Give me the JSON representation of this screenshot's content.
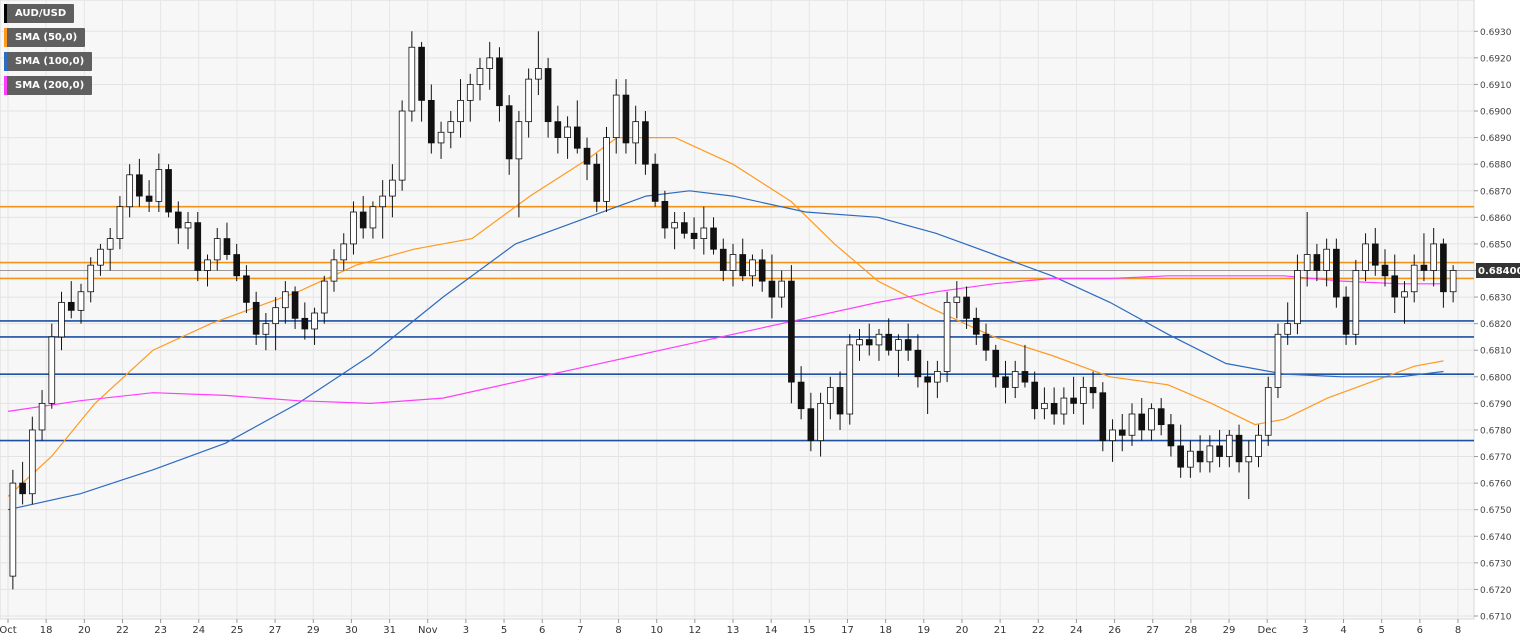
{
  "legend": [
    {
      "label": "AUD/USD",
      "color": "#000000"
    },
    {
      "label": "SMA (50,0)",
      "color": "#ff9a1f"
    },
    {
      "label": "SMA (100,0)",
      "color": "#2d6bc0"
    },
    {
      "label": "SMA (200,0)",
      "color": "#ff3dff"
    }
  ],
  "current_price_label": "0.68400",
  "chart_data": {
    "type": "candlestick",
    "symbol": "AUD/USD",
    "ylim": [
      0.671,
      0.6935
    ],
    "y_ticks": [
      "0.6710",
      "0.6720",
      "0.6730",
      "0.6740",
      "0.6750",
      "0.6760",
      "0.6770",
      "0.6780",
      "0.6790",
      "0.6800",
      "0.6810",
      "0.6820",
      "0.6830",
      "0.6840",
      "0.6850",
      "0.6860",
      "0.6870",
      "0.6880",
      "0.6890",
      "0.6900",
      "0.6910",
      "0.6920",
      "0.6930"
    ],
    "x_ticks": [
      "Oct",
      "18",
      "20",
      "22",
      "23",
      "24",
      "25",
      "27",
      "29",
      "30",
      "31",
      "Nov",
      "3",
      "5",
      "6",
      "7",
      "8",
      "10",
      "12",
      "13",
      "14",
      "15",
      "17",
      "18",
      "19",
      "20",
      "21",
      "22",
      "24",
      "26",
      "27",
      "28",
      "29",
      "Dec",
      "3",
      "4",
      "5",
      "6",
      "8"
    ],
    "current_price": 0.684,
    "horizontal_levels": {
      "resistance_orange": [
        0.6864,
        0.6843,
        0.6837
      ],
      "support_blue": [
        0.6821,
        0.6815,
        0.6801,
        0.6776
      ]
    },
    "candles": [
      [
        0.6725,
        0.6765,
        0.672,
        0.676
      ],
      [
        0.676,
        0.6768,
        0.6752,
        0.6756
      ],
      [
        0.6756,
        0.6785,
        0.6752,
        0.678
      ],
      [
        0.678,
        0.6795,
        0.6776,
        0.679
      ],
      [
        0.679,
        0.682,
        0.6788,
        0.6815
      ],
      [
        0.6815,
        0.6832,
        0.681,
        0.6828
      ],
      [
        0.6828,
        0.6836,
        0.6822,
        0.6825
      ],
      [
        0.6825,
        0.6835,
        0.682,
        0.6832
      ],
      [
        0.6832,
        0.6845,
        0.6828,
        0.6842
      ],
      [
        0.6842,
        0.685,
        0.6838,
        0.6848
      ],
      [
        0.6848,
        0.6856,
        0.684,
        0.6852
      ],
      [
        0.6852,
        0.6868,
        0.6848,
        0.6864
      ],
      [
        0.6864,
        0.688,
        0.686,
        0.6876
      ],
      [
        0.6876,
        0.6882,
        0.6864,
        0.6868
      ],
      [
        0.6868,
        0.6874,
        0.6862,
        0.6866
      ],
      [
        0.6866,
        0.6884,
        0.6862,
        0.6878
      ],
      [
        0.6878,
        0.688,
        0.686,
        0.6862
      ],
      [
        0.6862,
        0.6866,
        0.685,
        0.6856
      ],
      [
        0.6856,
        0.6862,
        0.6848,
        0.6858
      ],
      [
        0.6858,
        0.6862,
        0.6836,
        0.684
      ],
      [
        0.684,
        0.6846,
        0.6834,
        0.6844
      ],
      [
        0.6844,
        0.6856,
        0.684,
        0.6852
      ],
      [
        0.6852,
        0.6858,
        0.6844,
        0.6846
      ],
      [
        0.6846,
        0.685,
        0.6836,
        0.6838
      ],
      [
        0.6838,
        0.6842,
        0.6824,
        0.6828
      ],
      [
        0.6828,
        0.6832,
        0.6812,
        0.6816
      ],
      [
        0.6816,
        0.6824,
        0.681,
        0.682
      ],
      [
        0.682,
        0.683,
        0.681,
        0.6826
      ],
      [
        0.6826,
        0.6836,
        0.682,
        0.6832
      ],
      [
        0.6832,
        0.6834,
        0.6818,
        0.6822
      ],
      [
        0.6822,
        0.6828,
        0.6814,
        0.6818
      ],
      [
        0.6818,
        0.6826,
        0.6812,
        0.6824
      ],
      [
        0.6824,
        0.6838,
        0.682,
        0.6836
      ],
      [
        0.6836,
        0.6848,
        0.6832,
        0.6844
      ],
      [
        0.6844,
        0.6854,
        0.684,
        0.685
      ],
      [
        0.685,
        0.6866,
        0.6846,
        0.6862
      ],
      [
        0.6862,
        0.6868,
        0.6852,
        0.6856
      ],
      [
        0.6856,
        0.6866,
        0.6852,
        0.6864
      ],
      [
        0.6864,
        0.6874,
        0.6852,
        0.6868
      ],
      [
        0.6868,
        0.688,
        0.686,
        0.6874
      ],
      [
        0.6874,
        0.6904,
        0.687,
        0.69
      ],
      [
        0.69,
        0.693,
        0.6896,
        0.6924
      ],
      [
        0.6924,
        0.6926,
        0.6896,
        0.6904
      ],
      [
        0.6904,
        0.691,
        0.6884,
        0.6888
      ],
      [
        0.6888,
        0.6896,
        0.6882,
        0.6892
      ],
      [
        0.6892,
        0.69,
        0.6886,
        0.6896
      ],
      [
        0.6896,
        0.6912,
        0.689,
        0.6904
      ],
      [
        0.6904,
        0.6914,
        0.6896,
        0.691
      ],
      [
        0.691,
        0.692,
        0.6904,
        0.6916
      ],
      [
        0.6916,
        0.6926,
        0.6908,
        0.692
      ],
      [
        0.692,
        0.6924,
        0.6896,
        0.6902
      ],
      [
        0.6902,
        0.6906,
        0.6876,
        0.6882
      ],
      [
        0.6882,
        0.69,
        0.686,
        0.6896
      ],
      [
        0.6896,
        0.6916,
        0.689,
        0.6912
      ],
      [
        0.6912,
        0.693,
        0.6906,
        0.6916
      ],
      [
        0.6916,
        0.692,
        0.689,
        0.6896
      ],
      [
        0.6896,
        0.6902,
        0.6884,
        0.689
      ],
      [
        0.689,
        0.6898,
        0.6882,
        0.6894
      ],
      [
        0.6894,
        0.6904,
        0.6884,
        0.6886
      ],
      [
        0.6886,
        0.689,
        0.6874,
        0.688
      ],
      [
        0.688,
        0.6884,
        0.6862,
        0.6866
      ],
      [
        0.6866,
        0.6894,
        0.6862,
        0.689
      ],
      [
        0.689,
        0.6912,
        0.6884,
        0.6906
      ],
      [
        0.6906,
        0.6912,
        0.6884,
        0.6888
      ],
      [
        0.6888,
        0.6902,
        0.688,
        0.6896
      ],
      [
        0.6896,
        0.69,
        0.6876,
        0.688
      ],
      [
        0.688,
        0.6884,
        0.6864,
        0.6866
      ],
      [
        0.6866,
        0.687,
        0.6852,
        0.6856
      ],
      [
        0.6856,
        0.6862,
        0.6848,
        0.6858
      ],
      [
        0.6858,
        0.6862,
        0.6852,
        0.6854
      ],
      [
        0.6854,
        0.686,
        0.6848,
        0.6852
      ],
      [
        0.6852,
        0.6864,
        0.6846,
        0.6856
      ],
      [
        0.6856,
        0.686,
        0.6846,
        0.6848
      ],
      [
        0.6848,
        0.6852,
        0.6836,
        0.684
      ],
      [
        0.684,
        0.685,
        0.6834,
        0.6846
      ],
      [
        0.6846,
        0.6852,
        0.6836,
        0.6838
      ],
      [
        0.6838,
        0.6846,
        0.6834,
        0.6844
      ],
      [
        0.6844,
        0.6848,
        0.6832,
        0.6836
      ],
      [
        0.6836,
        0.6846,
        0.6822,
        0.683
      ],
      [
        0.683,
        0.684,
        0.6826,
        0.6836
      ],
      [
        0.6836,
        0.6842,
        0.679,
        0.6798
      ],
      [
        0.6798,
        0.6804,
        0.6784,
        0.6788
      ],
      [
        0.6788,
        0.6794,
        0.6772,
        0.6776
      ],
      [
        0.6776,
        0.6794,
        0.677,
        0.679
      ],
      [
        0.679,
        0.68,
        0.6784,
        0.6796
      ],
      [
        0.6796,
        0.6802,
        0.678,
        0.6786
      ],
      [
        0.6786,
        0.6816,
        0.6782,
        0.6812
      ],
      [
        0.6812,
        0.6818,
        0.6806,
        0.6814
      ],
      [
        0.6814,
        0.682,
        0.6808,
        0.6812
      ],
      [
        0.6812,
        0.6818,
        0.6806,
        0.6816
      ],
      [
        0.6816,
        0.6822,
        0.6808,
        0.681
      ],
      [
        0.681,
        0.6816,
        0.68,
        0.6814
      ],
      [
        0.6814,
        0.682,
        0.6806,
        0.681
      ],
      [
        0.681,
        0.6816,
        0.6796,
        0.68
      ],
      [
        0.68,
        0.6806,
        0.6786,
        0.6798
      ],
      [
        0.6798,
        0.6806,
        0.6792,
        0.6802
      ],
      [
        0.6802,
        0.6832,
        0.6798,
        0.6828
      ],
      [
        0.6828,
        0.6836,
        0.6822,
        0.683
      ],
      [
        0.683,
        0.6834,
        0.6818,
        0.6822
      ],
      [
        0.6822,
        0.6826,
        0.6812,
        0.6816
      ],
      [
        0.6816,
        0.682,
        0.6806,
        0.681
      ],
      [
        0.681,
        0.6812,
        0.6796,
        0.68
      ],
      [
        0.68,
        0.6806,
        0.679,
        0.6796
      ],
      [
        0.6796,
        0.6806,
        0.6792,
        0.6802
      ],
      [
        0.6802,
        0.6812,
        0.6796,
        0.6798
      ],
      [
        0.6798,
        0.6802,
        0.6784,
        0.6788
      ],
      [
        0.6788,
        0.6796,
        0.6784,
        0.679
      ],
      [
        0.679,
        0.6796,
        0.6782,
        0.6786
      ],
      [
        0.6786,
        0.6796,
        0.6782,
        0.6792
      ],
      [
        0.6792,
        0.68,
        0.6786,
        0.679
      ],
      [
        0.679,
        0.68,
        0.6782,
        0.6796
      ],
      [
        0.6796,
        0.6802,
        0.6788,
        0.6794
      ],
      [
        0.6794,
        0.6798,
        0.6772,
        0.6776
      ],
      [
        0.6776,
        0.6784,
        0.6768,
        0.678
      ],
      [
        0.678,
        0.6786,
        0.6772,
        0.6778
      ],
      [
        0.6778,
        0.679,
        0.6774,
        0.6786
      ],
      [
        0.6786,
        0.6792,
        0.6776,
        0.678
      ],
      [
        0.678,
        0.679,
        0.6776,
        0.6788
      ],
      [
        0.6788,
        0.6792,
        0.6778,
        0.6782
      ],
      [
        0.6782,
        0.6786,
        0.677,
        0.6774
      ],
      [
        0.6774,
        0.6782,
        0.6762,
        0.6766
      ],
      [
        0.6766,
        0.6776,
        0.6762,
        0.6772
      ],
      [
        0.6772,
        0.6778,
        0.6764,
        0.6768
      ],
      [
        0.6768,
        0.6778,
        0.6764,
        0.6774
      ],
      [
        0.6774,
        0.678,
        0.6766,
        0.677
      ],
      [
        0.677,
        0.678,
        0.6766,
        0.6778
      ],
      [
        0.6778,
        0.6782,
        0.6764,
        0.6768
      ],
      [
        0.6768,
        0.6776,
        0.6754,
        0.677
      ],
      [
        0.677,
        0.6782,
        0.6766,
        0.6778
      ],
      [
        0.6778,
        0.68,
        0.6774,
        0.6796
      ],
      [
        0.6796,
        0.682,
        0.6792,
        0.6816
      ],
      [
        0.6816,
        0.6828,
        0.6812,
        0.682
      ],
      [
        0.682,
        0.6846,
        0.6816,
        0.684
      ],
      [
        0.684,
        0.6862,
        0.6834,
        0.6846
      ],
      [
        0.6846,
        0.685,
        0.6836,
        0.684
      ],
      [
        0.684,
        0.6852,
        0.6834,
        0.6848
      ],
      [
        0.6848,
        0.6852,
        0.6826,
        0.683
      ],
      [
        0.683,
        0.6834,
        0.6812,
        0.6816
      ],
      [
        0.6816,
        0.6844,
        0.6812,
        0.684
      ],
      [
        0.684,
        0.6854,
        0.6836,
        0.685
      ],
      [
        0.685,
        0.6856,
        0.6838,
        0.6842
      ],
      [
        0.6842,
        0.6848,
        0.6834,
        0.6838
      ],
      [
        0.6838,
        0.6846,
        0.6824,
        0.683
      ],
      [
        0.683,
        0.6836,
        0.682,
        0.6832
      ],
      [
        0.6832,
        0.6846,
        0.6828,
        0.6842
      ],
      [
        0.6842,
        0.6854,
        0.6836,
        0.684
      ],
      [
        0.684,
        0.6856,
        0.6834,
        0.685
      ],
      [
        0.685,
        0.6852,
        0.6826,
        0.6832
      ],
      [
        0.6832,
        0.6842,
        0.6828,
        0.684
      ]
    ],
    "series": [
      {
        "name": "SMA (50,0)",
        "color": "#ff9a1f",
        "points": [
          [
            0,
            0.6755
          ],
          [
            0.03,
            0.677
          ],
          [
            0.06,
            0.679
          ],
          [
            0.1,
            0.681
          ],
          [
            0.14,
            0.682
          ],
          [
            0.2,
            0.6832
          ],
          [
            0.24,
            0.6842
          ],
          [
            0.28,
            0.6848
          ],
          [
            0.32,
            0.6852
          ],
          [
            0.36,
            0.6868
          ],
          [
            0.4,
            0.6882
          ],
          [
            0.42,
            0.689
          ],
          [
            0.46,
            0.689
          ],
          [
            0.5,
            0.688
          ],
          [
            0.54,
            0.6866
          ],
          [
            0.57,
            0.685
          ],
          [
            0.6,
            0.6836
          ],
          [
            0.64,
            0.6825
          ],
          [
            0.68,
            0.6815
          ],
          [
            0.72,
            0.6808
          ],
          [
            0.76,
            0.68
          ],
          [
            0.8,
            0.6797
          ],
          [
            0.83,
            0.679
          ],
          [
            0.86,
            0.6782
          ],
          [
            0.88,
            0.6784
          ],
          [
            0.91,
            0.6792
          ],
          [
            0.94,
            0.6798
          ],
          [
            0.97,
            0.6804
          ],
          [
            0.99,
            0.6806
          ]
        ]
      },
      {
        "name": "SMA (100,0)",
        "color": "#2d6bc0",
        "points": [
          [
            0,
            0.675
          ],
          [
            0.05,
            0.6756
          ],
          [
            0.1,
            0.6765
          ],
          [
            0.15,
            0.6775
          ],
          [
            0.2,
            0.679
          ],
          [
            0.25,
            0.6808
          ],
          [
            0.3,
            0.683
          ],
          [
            0.35,
            0.685
          ],
          [
            0.4,
            0.686
          ],
          [
            0.44,
            0.6868
          ],
          [
            0.47,
            0.687
          ],
          [
            0.5,
            0.6868
          ],
          [
            0.55,
            0.6862
          ],
          [
            0.6,
            0.686
          ],
          [
            0.64,
            0.6854
          ],
          [
            0.68,
            0.6846
          ],
          [
            0.72,
            0.6838
          ],
          [
            0.76,
            0.6828
          ],
          [
            0.8,
            0.6816
          ],
          [
            0.84,
            0.6805
          ],
          [
            0.88,
            0.6801
          ],
          [
            0.92,
            0.68
          ],
          [
            0.96,
            0.68
          ],
          [
            0.99,
            0.6802
          ]
        ]
      },
      {
        "name": "SMA (200,0)",
        "color": "#ff3dff",
        "points": [
          [
            0,
            0.6787
          ],
          [
            0.05,
            0.6791
          ],
          [
            0.1,
            0.6794
          ],
          [
            0.15,
            0.6793
          ],
          [
            0.2,
            0.6791
          ],
          [
            0.25,
            0.679
          ],
          [
            0.3,
            0.6792
          ],
          [
            0.35,
            0.6798
          ],
          [
            0.4,
            0.6804
          ],
          [
            0.45,
            0.681
          ],
          [
            0.5,
            0.6816
          ],
          [
            0.55,
            0.6822
          ],
          [
            0.6,
            0.6828
          ],
          [
            0.64,
            0.6832
          ],
          [
            0.68,
            0.6835
          ],
          [
            0.72,
            0.6837
          ],
          [
            0.76,
            0.6837
          ],
          [
            0.8,
            0.6838
          ],
          [
            0.84,
            0.6838
          ],
          [
            0.88,
            0.6838
          ],
          [
            0.92,
            0.6836
          ],
          [
            0.96,
            0.6835
          ],
          [
            0.99,
            0.6835
          ]
        ]
      }
    ]
  }
}
